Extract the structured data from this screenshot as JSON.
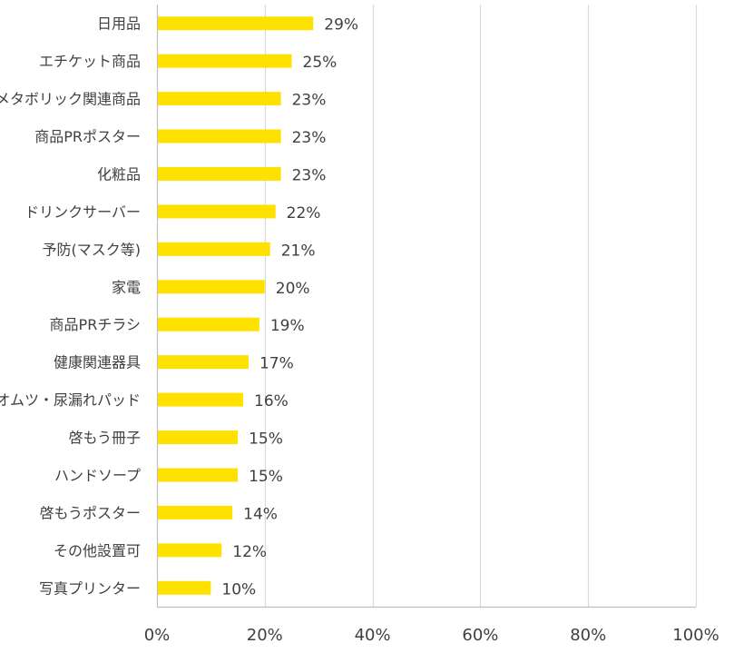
{
  "colors": {
    "bar": "#FFE100",
    "grid": "#D9D9D9",
    "axis": "#BFBFBF",
    "text": "#404040"
  },
  "chart_data": {
    "type": "bar",
    "orientation": "horizontal",
    "categories": [
      "日用品",
      "エチケット商品",
      "メタボリック関連商品",
      "商品PRポスター",
      "化粧品",
      "ドリンクサーバー",
      "予防(マスク等)",
      "家電",
      "商品PRチラシ",
      "健康関連器具",
      "オムツ・尿漏れパッド",
      "啓もう冊子",
      "ハンドソープ",
      "啓もうポスター",
      "その他設置可",
      "写真プリンター"
    ],
    "values": [
      29,
      25,
      23,
      23,
      23,
      22,
      21,
      20,
      19,
      17,
      16,
      15,
      15,
      14,
      12,
      10
    ],
    "value_labels": [
      "29%",
      "25%",
      "23%",
      "23%",
      "23%",
      "22%",
      "21%",
      "20%",
      "19%",
      "17%",
      "16%",
      "15%",
      "15%",
      "14%",
      "12%",
      "10%"
    ],
    "xlim": [
      0,
      100
    ],
    "x_ticks": [
      0,
      20,
      40,
      60,
      80,
      100
    ],
    "x_tick_labels": [
      "0%",
      "20%",
      "40%",
      "60%",
      "80%",
      "100%"
    ],
    "grid": true,
    "title": "",
    "xlabel": "",
    "ylabel": ""
  }
}
